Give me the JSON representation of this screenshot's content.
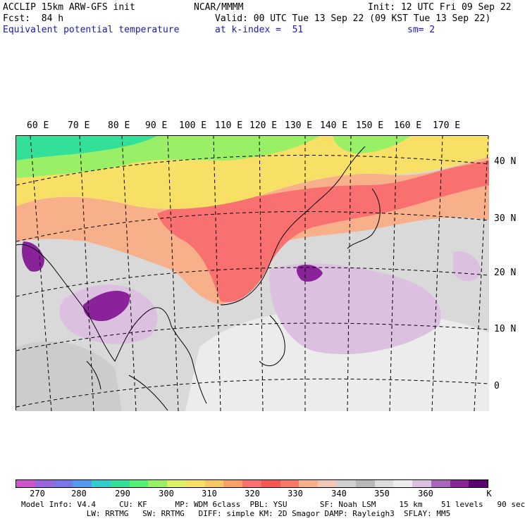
{
  "header": {
    "line1_left": "ACCLIP 15km ARW-GFS init",
    "line1_center": "NCAR/MMMM",
    "line1_right": "Init: 12 UTC Fri 09 Sep 22",
    "line2_left": "Fcst:  84 h",
    "line2_right": "Valid: 00 UTC Tue 13 Sep 22 (09 KST Tue 13 Sep 22)",
    "line3_left": "Equivalent potential temperature",
    "line3_center": "at k-index =  51",
    "line3_right": "sm= 2"
  },
  "map": {
    "lon_labels": [
      "60 E",
      "70 E",
      "80 E",
      "90 E",
      "100 E",
      "110 E",
      "120 E",
      "130 E",
      "140 E",
      "150 E",
      "160 E",
      "170 E"
    ],
    "lat_labels": [
      "40 N",
      "30 N",
      "20 N",
      "10 N",
      "0"
    ]
  },
  "colorbar": {
    "colors": [
      "#cc55cc",
      "#9966dd",
      "#7777e8",
      "#5599ee",
      "#33cccc",
      "#33e099",
      "#55ee77",
      "#99f066",
      "#ddf066",
      "#f8e066",
      "#f8c866",
      "#f8a066",
      "#f87070",
      "#f85555",
      "#f87a66",
      "#f8b08a",
      "#f0c8b8",
      "#cfcfcf",
      "#b8b8b8",
      "#dddddd",
      "#ececec",
      "#dcc0e0",
      "#aa66bb",
      "#8a2299",
      "#5a0070"
    ],
    "labels": [
      "270",
      "280",
      "290",
      "300",
      "310",
      "320",
      "330",
      "340",
      "350",
      "360",
      "K"
    ]
  },
  "footer": {
    "line1": "Model Info: V4.4     CU: KF      MP: WDM 6class  PBL: YSU       SF: Noah LSM     15 km    51 levels   90 sec",
    "line2": "              LW: RRTMG   SW: RRTMG   DIFF: simple KM: 2D Smagor DAMP: Rayleigh3  SFLAY: MM5"
  }
}
